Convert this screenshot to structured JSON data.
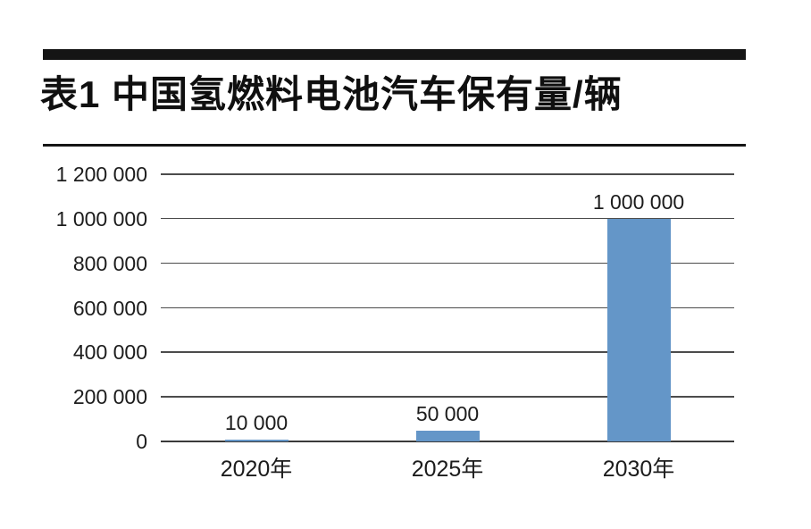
{
  "header": {
    "table_label": "表1",
    "title": "表1 中国氢燃料电池汽车保有量/辆"
  },
  "chart_data": {
    "type": "bar",
    "title": "表1 中国氢燃料电池汽车保有量/辆",
    "categories": [
      "2020年",
      "2025年",
      "2030年"
    ],
    "values": [
      10000,
      50000,
      1000000
    ],
    "value_labels": [
      "10 000",
      "50 000",
      "1 000 000"
    ],
    "xlabel": "",
    "ylabel": "",
    "unit": "辆",
    "ylim": [
      0,
      1200000
    ],
    "y_ticks": [
      0,
      200000,
      400000,
      600000,
      800000,
      1000000,
      1200000
    ],
    "y_tick_labels": [
      "0",
      "200 000",
      "400 000",
      "600 000",
      "800 000",
      "1 000 000",
      "1 200 000"
    ],
    "grid": true,
    "legend": false,
    "legend_position": "none",
    "bar_color": "#6496C8"
  },
  "colors": {
    "bar": "#6496C8",
    "rule": "#151515",
    "gridline": "#4c4c4c",
    "text": "#1c1c1c",
    "background": "#ffffff"
  }
}
